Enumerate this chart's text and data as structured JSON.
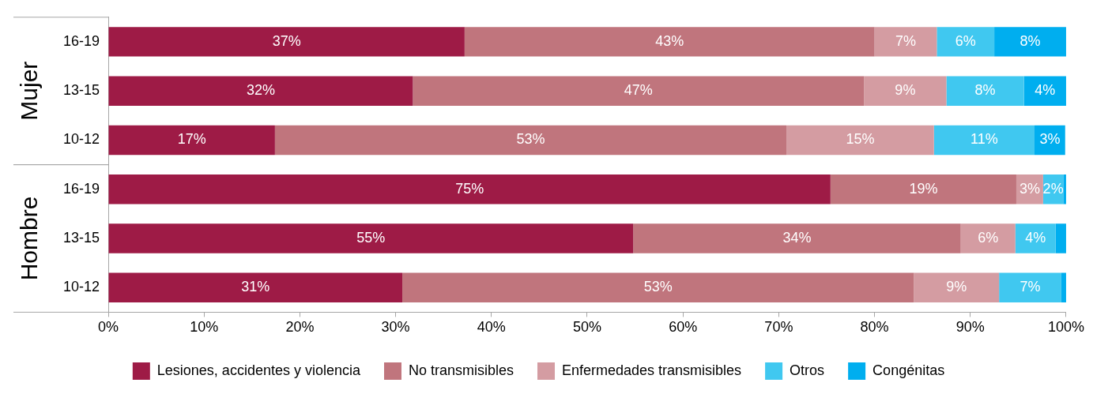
{
  "chart_data": {
    "type": "bar",
    "orientation": "horizontal",
    "stacked": true,
    "categories": [
      "16-19",
      "13-15",
      "10-12",
      "16-19",
      "13-15",
      "10-12"
    ],
    "annotations": [
      "Mujer",
      "Hombre"
    ],
    "series": [
      {
        "name": "Lesiones, accidentes y violencia",
        "color": "#9e1b46",
        "values": [
          37.2,
          31.8,
          17.4,
          75.4,
          54.8,
          30.7
        ],
        "value_labels": [
          "37%",
          "32%",
          "17%",
          "75%",
          "55%",
          "31%"
        ]
      },
      {
        "name": "No transmisibles",
        "color": "#c0757d",
        "values": [
          42.8,
          47.1,
          53.4,
          19.4,
          34.2,
          53.4
        ],
        "value_labels": [
          "43%",
          "47%",
          "53%",
          "19%",
          "34%",
          "53%"
        ]
      },
      {
        "name": "Enfermedades transmisibles",
        "color": "#d49ca2",
        "values": [
          6.5,
          8.6,
          15.4,
          2.8,
          5.7,
          8.9
        ],
        "value_labels": [
          "7%",
          "9%",
          "15%",
          "3%",
          "6%",
          "9%"
        ]
      },
      {
        "name": "Otros",
        "color": "#40c8f0",
        "values": [
          6.0,
          8.1,
          10.5,
          2.1,
          4.2,
          6.5
        ],
        "value_labels": [
          "6%",
          "8%",
          "11%",
          "2%",
          "4%",
          "7%"
        ]
      },
      {
        "name": "Congénitas",
        "color": "#00aeef",
        "values": [
          7.5,
          4.4,
          3.2,
          0.3,
          1.1,
          0.5
        ],
        "value_labels": [
          "8%",
          "4%",
          "3%",
          null,
          null,
          null
        ]
      }
    ],
    "xlim": [
      0,
      100
    ],
    "xticks": [
      {
        "value": 0,
        "label": "0%"
      },
      {
        "value": 10,
        "label": "10%"
      },
      {
        "value": 20,
        "label": "20%"
      },
      {
        "value": 30,
        "label": "30%"
      },
      {
        "value": 40,
        "label": "40%"
      },
      {
        "value": 50,
        "label": "50%"
      },
      {
        "value": 60,
        "label": "60%"
      },
      {
        "value": 70,
        "label": "70%"
      },
      {
        "value": 80,
        "label": "80%"
      },
      {
        "value": 90,
        "label": "90%"
      },
      {
        "value": 100,
        "label": "100%"
      }
    ],
    "grid": false,
    "legend": "bottom"
  }
}
